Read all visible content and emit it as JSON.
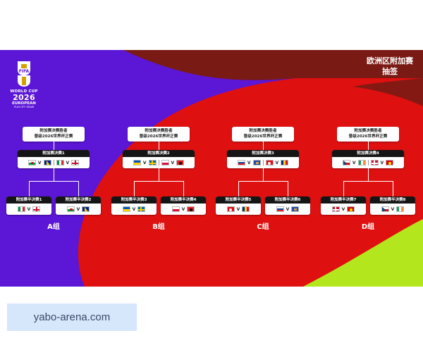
{
  "logo": {
    "brand": "FIFA",
    "line1": "WORLD CUP",
    "line2": "2026",
    "line3": "EUROPEAN",
    "line4": "PLAY-OFF DRAW"
  },
  "title": {
    "line1": "欧洲区附加赛",
    "line2": "抽签"
  },
  "winner_label": {
    "line1": "附加赛决赛胜者",
    "line2": "晋级2026世界杯正赛"
  },
  "brackets": [
    {
      "group": "A组",
      "final_label": "附加赛决赛1",
      "semis": [
        {
          "label": "附加赛半决赛1",
          "flags": [
            "italy",
            "northern-ireland"
          ]
        },
        {
          "label": "附加赛半决赛2",
          "flags": [
            "wales",
            "bosnia"
          ]
        }
      ],
      "final_flags": [
        "wales",
        "bosnia",
        "italy",
        "northern-ireland"
      ]
    },
    {
      "group": "B组",
      "final_label": "附加赛决赛2",
      "semis": [
        {
          "label": "附加赛半决赛3",
          "flags": [
            "ukraine",
            "sweden"
          ]
        },
        {
          "label": "附加赛半决赛4",
          "flags": [
            "poland",
            "albania"
          ]
        }
      ],
      "final_flags": [
        "ukraine",
        "sweden",
        "poland",
        "albania"
      ]
    },
    {
      "group": "C组",
      "final_label": "附加赛决赛3",
      "semis": [
        {
          "label": "附加赛半决赛5",
          "flags": [
            "turkiye",
            "romania"
          ]
        },
        {
          "label": "附加赛半决赛6",
          "flags": [
            "slovakia",
            "kosovo"
          ]
        }
      ],
      "final_flags": [
        "slovakia",
        "kosovo",
        "turkiye",
        "romania"
      ]
    },
    {
      "group": "D组",
      "final_label": "附加赛决赛4",
      "semis": [
        {
          "label": "附加赛半决赛7",
          "flags": [
            "denmark",
            "north-macedonia"
          ]
        },
        {
          "label": "附加赛半决赛8",
          "flags": [
            "czechia",
            "ireland"
          ]
        }
      ],
      "final_flags": [
        "czechia",
        "ireland",
        "denmark",
        "north-macedonia"
      ]
    }
  ],
  "vs_symbol": "V",
  "watermark": "yabo-arena.com",
  "colors": {
    "purple": "#5b16d6",
    "red": "#df1010",
    "dark_red": "#7a1a14",
    "lime": "#b4e61e",
    "box_header": "#151515"
  }
}
